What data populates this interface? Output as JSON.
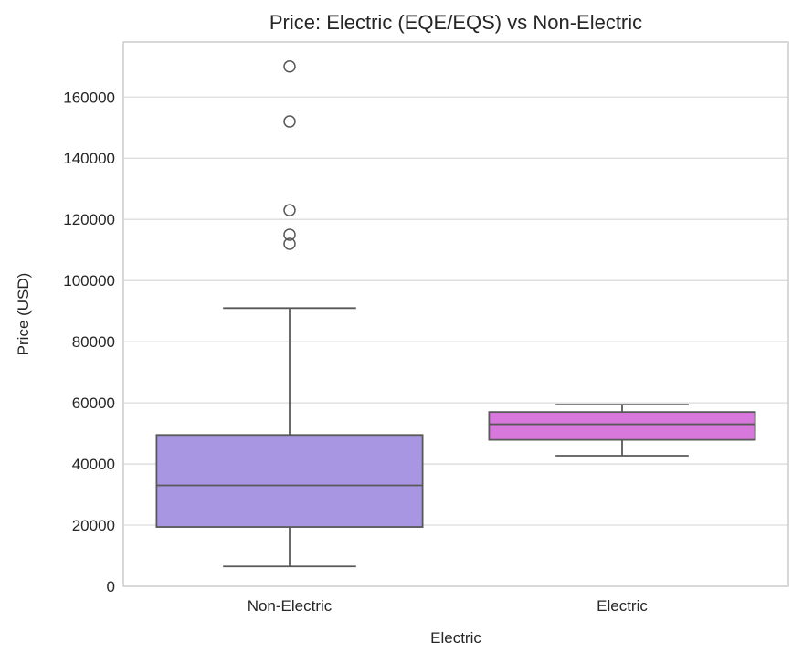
{
  "chart_data": {
    "type": "box",
    "title": "Price: Electric (EQE/EQS) vs Non-Electric",
    "xlabel": "Electric",
    "ylabel": "Price (USD)",
    "categories": [
      "Non-Electric",
      "Electric"
    ],
    "ylim": [
      0,
      178000
    ],
    "yticks": [
      0,
      20000,
      40000,
      60000,
      80000,
      100000,
      120000,
      140000,
      160000
    ],
    "grid": true,
    "legend": "none",
    "series": [
      {
        "name": "Non-Electric",
        "whisker_low": 6500,
        "q1": 19400,
        "median": 33000,
        "q3": 49500,
        "whisker_high": 91000,
        "outliers": [
          112000,
          115000,
          123000,
          152000,
          170000
        ],
        "fill_color": "#a896e2"
      },
      {
        "name": "Electric",
        "whisker_low": 42700,
        "q1": 47900,
        "median": 53000,
        "q3": 57000,
        "whisker_high": 59400,
        "outliers": [],
        "fill_color": "#d878dc"
      }
    ],
    "colors": {
      "line": "#595959",
      "grid": "#dcdcdc",
      "frame": "#cccccc",
      "text": "#262626",
      "background": "#ffffff"
    }
  }
}
